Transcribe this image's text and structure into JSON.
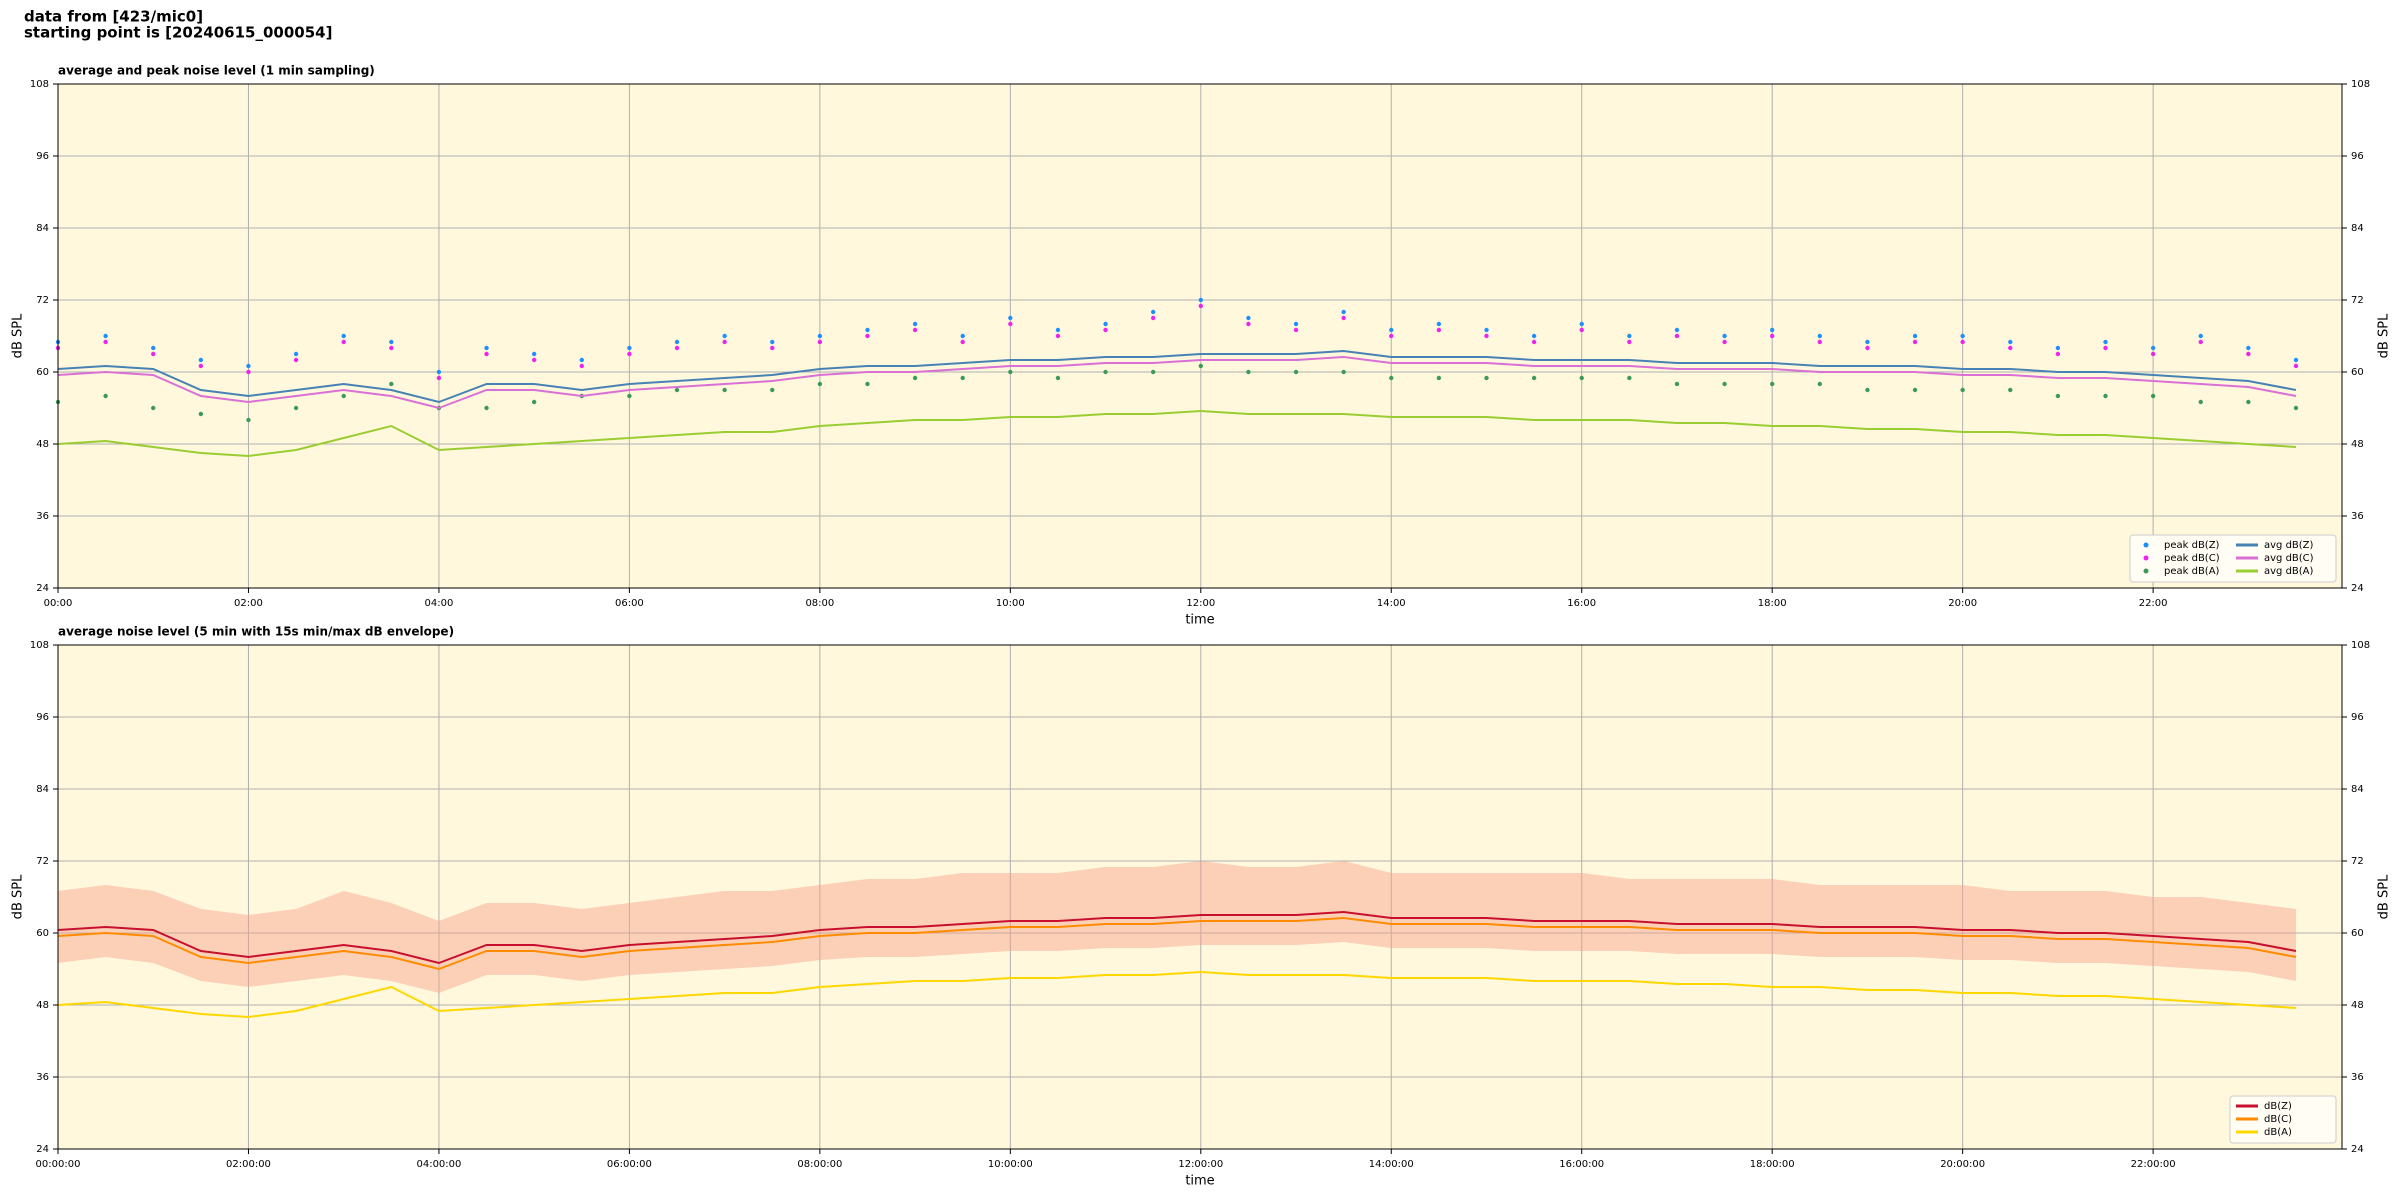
{
  "header": {
    "line1": "data from [423/mic0]",
    "line2": "starting point is [20240615_000054]"
  },
  "chart_data": [
    {
      "type": "line",
      "title": "average and peak noise level (1 min sampling)",
      "xlabel": "time",
      "ylabel": "dB SPL",
      "x": [
        "00:00",
        "00:30",
        "01:00",
        "01:30",
        "02:00",
        "02:30",
        "03:00",
        "03:30",
        "04:00",
        "04:30",
        "05:00",
        "05:30",
        "06:00",
        "06:30",
        "07:00",
        "07:30",
        "08:00",
        "08:30",
        "09:00",
        "09:30",
        "10:00",
        "10:30",
        "11:00",
        "11:30",
        "12:00",
        "12:30",
        "13:00",
        "13:30",
        "14:00",
        "14:30",
        "15:00",
        "15:30",
        "16:00",
        "16:30",
        "17:00",
        "17:30",
        "18:00",
        "18:30",
        "19:00",
        "19:30",
        "20:00",
        "20:30",
        "21:00",
        "21:30",
        "22:00",
        "22:30",
        "23:00",
        "23:30"
      ],
      "xlim": [
        "00:00",
        "23:59"
      ],
      "xticks": [
        "00:00",
        "02:00",
        "04:00",
        "06:00",
        "08:00",
        "10:00",
        "12:00",
        "14:00",
        "16:00",
        "18:00",
        "20:00",
        "22:00"
      ],
      "ylim": [
        24,
        108
      ],
      "yticks": [
        24,
        36,
        48,
        60,
        72,
        84,
        96,
        108
      ],
      "grid": true,
      "background": "#fff8dc",
      "legend": "lower right",
      "legend_columns": 2,
      "series": [
        {
          "name": "peak dB(Z)",
          "type": "scatter",
          "color": "#1f8fff",
          "values": [
            65,
            66,
            64,
            62,
            61,
            63,
            66,
            65,
            60,
            64,
            63,
            62,
            64,
            65,
            66,
            65,
            66,
            67,
            68,
            66,
            69,
            67,
            68,
            70,
            72,
            69,
            68,
            70,
            67,
            68,
            67,
            66,
            68,
            66,
            67,
            66,
            67,
            66,
            65,
            66,
            66,
            65,
            64,
            65,
            64,
            66,
            64,
            62
          ]
        },
        {
          "name": "peak dB(C)",
          "type": "scatter",
          "color": "#ee22ee",
          "values": [
            64,
            65,
            63,
            61,
            60,
            62,
            65,
            64,
            59,
            63,
            62,
            61,
            63,
            64,
            65,
            64,
            65,
            66,
            67,
            65,
            68,
            66,
            67,
            69,
            71,
            68,
            67,
            69,
            66,
            67,
            66,
            65,
            67,
            65,
            66,
            65,
            66,
            65,
            64,
            65,
            65,
            64,
            63,
            64,
            63,
            65,
            63,
            61
          ]
        },
        {
          "name": "peak dB(A)",
          "type": "scatter",
          "color": "#3a9a5a",
          "values": [
            55,
            56,
            54,
            53,
            52,
            54,
            56,
            58,
            54,
            54,
            55,
            56,
            56,
            57,
            57,
            57,
            58,
            58,
            59,
            59,
            60,
            59,
            60,
            60,
            61,
            60,
            60,
            60,
            59,
            59,
            59,
            59,
            59,
            59,
            58,
            58,
            58,
            58,
            57,
            57,
            57,
            57,
            56,
            56,
            56,
            55,
            55,
            54
          ]
        },
        {
          "name": "avg dB(Z)",
          "type": "line",
          "color": "#4682b4",
          "values": [
            60.5,
            61,
            60.5,
            57,
            56,
            57,
            58,
            57,
            55,
            58,
            58,
            57,
            58,
            58.5,
            59,
            59.5,
            60.5,
            61,
            61,
            61.5,
            62,
            62,
            62.5,
            62.5,
            63,
            63,
            63,
            63.5,
            62.5,
            62.5,
            62.5,
            62,
            62,
            62,
            61.5,
            61.5,
            61.5,
            61,
            61,
            61,
            60.5,
            60.5,
            60,
            60,
            59.5,
            59,
            58.5,
            57
          ]
        },
        {
          "name": "avg dB(C)",
          "type": "line",
          "color": "#da70d6",
          "values": [
            59.5,
            60,
            59.5,
            56,
            55,
            56,
            57,
            56,
            54,
            57,
            57,
            56,
            57,
            57.5,
            58,
            58.5,
            59.5,
            60,
            60,
            60.5,
            61,
            61,
            61.5,
            61.5,
            62,
            62,
            62,
            62.5,
            61.5,
            61.5,
            61.5,
            61,
            61,
            61,
            60.5,
            60.5,
            60.5,
            60,
            60,
            60,
            59.5,
            59.5,
            59,
            59,
            58.5,
            58,
            57.5,
            56
          ]
        },
        {
          "name": "avg dB(A)",
          "type": "line",
          "color": "#9acd32",
          "values": [
            48,
            48.5,
            47.5,
            46.5,
            46,
            47,
            49,
            51,
            47,
            47.5,
            48,
            48.5,
            49,
            49.5,
            50,
            50,
            51,
            51.5,
            52,
            52,
            52.5,
            52.5,
            53,
            53,
            53.5,
            53,
            53,
            53,
            52.5,
            52.5,
            52.5,
            52,
            52,
            52,
            51.5,
            51.5,
            51,
            51,
            50.5,
            50.5,
            50,
            50,
            49.5,
            49.5,
            49,
            48.5,
            48,
            47.5
          ]
        }
      ]
    },
    {
      "type": "line",
      "title": "average noise level (5 min with 15s min/max dB envelope)",
      "xlabel": "time",
      "ylabel": "dB SPL",
      "x": [
        "00:00:00",
        "00:30:00",
        "01:00:00",
        "01:30:00",
        "02:00:00",
        "02:30:00",
        "03:00:00",
        "03:30:00",
        "04:00:00",
        "04:30:00",
        "05:00:00",
        "05:30:00",
        "06:00:00",
        "06:30:00",
        "07:00:00",
        "07:30:00",
        "08:00:00",
        "08:30:00",
        "09:00:00",
        "09:30:00",
        "10:00:00",
        "10:30:00",
        "11:00:00",
        "11:30:00",
        "12:00:00",
        "12:30:00",
        "13:00:00",
        "13:30:00",
        "14:00:00",
        "14:30:00",
        "15:00:00",
        "15:30:00",
        "16:00:00",
        "16:30:00",
        "17:00:00",
        "17:30:00",
        "18:00:00",
        "18:30:00",
        "19:00:00",
        "19:30:00",
        "20:00:00",
        "20:30:00",
        "21:00:00",
        "21:30:00",
        "22:00:00",
        "22:30:00",
        "23:00:00",
        "23:30:00"
      ],
      "xlim": [
        "00:00:00",
        "23:59:00"
      ],
      "xticks": [
        "00:00:00",
        "02:00:00",
        "04:00:00",
        "06:00:00",
        "08:00:00",
        "10:00:00",
        "12:00:00",
        "14:00:00",
        "16:00:00",
        "18:00:00",
        "20:00:00",
        "22:00:00"
      ],
      "ylim": [
        24,
        108
      ],
      "yticks": [
        24,
        36,
        48,
        60,
        72,
        84,
        96,
        108
      ],
      "grid": true,
      "background": "#fff8dc",
      "legend": "lower right",
      "legend_columns": 1,
      "envelope": {
        "color": "#f6a08a",
        "min": [
          55,
          56,
          55,
          52,
          51,
          52,
          53,
          52,
          50,
          53,
          53,
          52,
          53,
          53.5,
          54,
          54.5,
          55.5,
          56,
          56,
          56.5,
          57,
          57,
          57.5,
          57.5,
          58,
          58,
          58,
          58.5,
          57.5,
          57.5,
          57.5,
          57,
          57,
          57,
          56.5,
          56.5,
          56.5,
          56,
          56,
          56,
          55.5,
          55.5,
          55,
          55,
          54.5,
          54,
          53.5,
          52
        ],
        "max": [
          67,
          68,
          67,
          64,
          63,
          64,
          67,
          65,
          62,
          65,
          65,
          64,
          65,
          66,
          67,
          67,
          68,
          69,
          69,
          70,
          70,
          70,
          71,
          71,
          72,
          71,
          71,
          72,
          70,
          70,
          70,
          70,
          70,
          69,
          69,
          69,
          69,
          68,
          68,
          68,
          68,
          67,
          67,
          67,
          66,
          66,
          65,
          64
        ]
      },
      "series": [
        {
          "name": "dB(Z)",
          "type": "line",
          "color": "#c8102e",
          "values": [
            60.5,
            61,
            60.5,
            57,
            56,
            57,
            58,
            57,
            55,
            58,
            58,
            57,
            58,
            58.5,
            59,
            59.5,
            60.5,
            61,
            61,
            61.5,
            62,
            62,
            62.5,
            62.5,
            63,
            63,
            63,
            63.5,
            62.5,
            62.5,
            62.5,
            62,
            62,
            62,
            61.5,
            61.5,
            61.5,
            61,
            61,
            61,
            60.5,
            60.5,
            60,
            60,
            59.5,
            59,
            58.5,
            57
          ]
        },
        {
          "name": "dB(C)",
          "type": "line",
          "color": "#ff8c00",
          "values": [
            59.5,
            60,
            59.5,
            56,
            55,
            56,
            57,
            56,
            54,
            57,
            57,
            56,
            57,
            57.5,
            58,
            58.5,
            59.5,
            60,
            60,
            60.5,
            61,
            61,
            61.5,
            61.5,
            62,
            62,
            62,
            62.5,
            61.5,
            61.5,
            61.5,
            61,
            61,
            61,
            60.5,
            60.5,
            60.5,
            60,
            60,
            60,
            59.5,
            59.5,
            59,
            59,
            58.5,
            58,
            57.5,
            56
          ]
        },
        {
          "name": "dB(A)",
          "type": "line",
          "color": "#ffd700",
          "values": [
            48,
            48.5,
            47.5,
            46.5,
            46,
            47,
            49,
            51,
            47,
            47.5,
            48,
            48.5,
            49,
            49.5,
            50,
            50,
            51,
            51.5,
            52,
            52,
            52.5,
            52.5,
            53,
            53,
            53.5,
            53,
            53,
            53,
            52.5,
            52.5,
            52.5,
            52,
            52,
            52,
            51.5,
            51.5,
            51,
            51,
            50.5,
            50.5,
            50,
            50,
            49.5,
            49.5,
            49,
            48.5,
            48,
            47.5
          ]
        }
      ]
    }
  ]
}
